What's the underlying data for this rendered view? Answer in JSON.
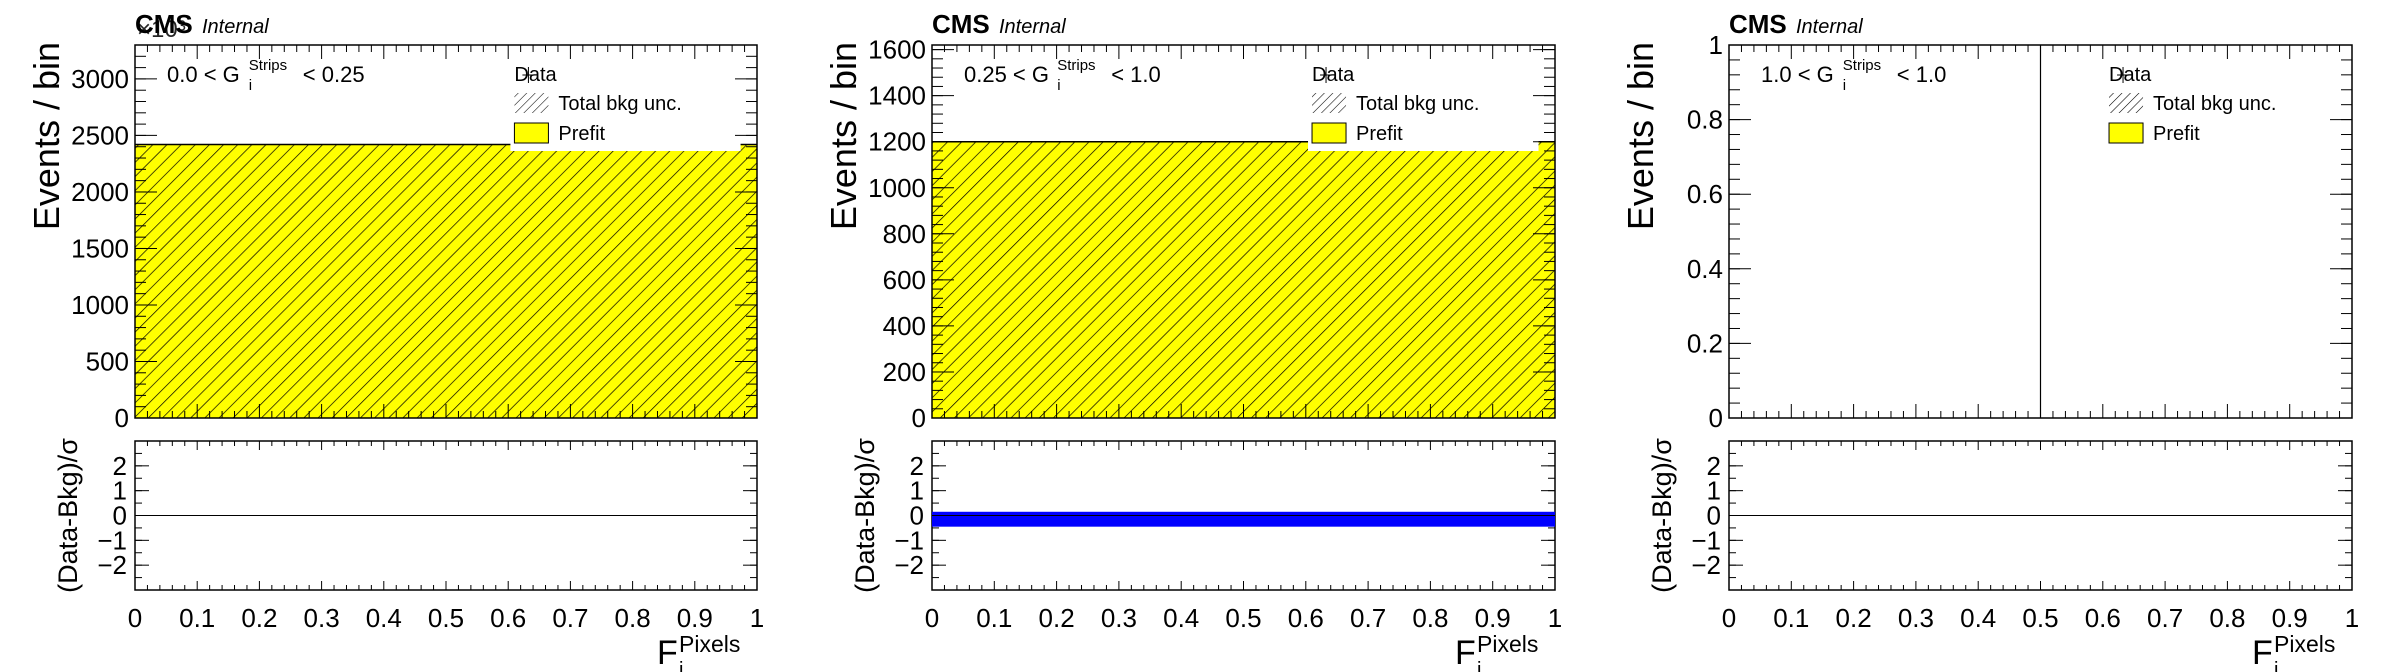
{
  "chart_data": [
    {
      "type": "bar",
      "cms_label": "CMS",
      "cms_sublabel": "Internal",
      "exponent_label": "×10³",
      "region": {
        "prefix": "0.0 < G",
        "sup": "Strips",
        "sub": "i",
        "suffix": "< 0.25"
      },
      "ylabel": "Events / bin",
      "yticks": [
        "0",
        "500",
        "1000",
        "1500",
        "2000",
        "2500",
        "3000"
      ],
      "ylim": [
        0,
        3300
      ],
      "xlim": [
        0,
        1
      ],
      "xticks": [
        "0",
        "0.1",
        "0.2",
        "0.3",
        "0.4",
        "0.5",
        "0.6",
        "0.7",
        "0.8",
        "0.9",
        "1"
      ],
      "xlabel": {
        "base": "F",
        "sup": "Pixels",
        "sub": "i"
      },
      "legend": {
        "position": "top-right",
        "entries": [
          "Data",
          "Total bkg unc.",
          "Prefit"
        ]
      },
      "series": [
        {
          "name": "Prefit",
          "bins": [
            [
              0,
              1
            ]
          ],
          "values": [
            2420
          ],
          "color": "#ffff00"
        }
      ],
      "ratio": {
        "ylabel": "(Data-Bkg)/σ",
        "yticks": [
          "2",
          "1",
          "0",
          "−1",
          "−2"
        ],
        "ylim": [
          -3,
          3
        ],
        "band": null
      }
    },
    {
      "type": "bar",
      "cms_label": "CMS",
      "cms_sublabel": "Internal",
      "region": {
        "prefix": "0.25 < G",
        "sup": "Strips",
        "sub": "i",
        "suffix": "< 1.0"
      },
      "ylabel": "Events / bin",
      "yticks": [
        "0",
        "200",
        "400",
        "600",
        "800",
        "1000",
        "1200",
        "1400",
        "1600"
      ],
      "ylim": [
        0,
        1620
      ],
      "xlim": [
        0,
        1
      ],
      "xticks": [
        "0",
        "0.1",
        "0.2",
        "0.3",
        "0.4",
        "0.5",
        "0.6",
        "0.7",
        "0.8",
        "0.9",
        "1"
      ],
      "xlabel": {
        "base": "F",
        "sup": "Pixels",
        "sub": "i"
      },
      "legend": {
        "position": "top-right",
        "entries": [
          "Data",
          "Total bkg unc.",
          "Prefit"
        ]
      },
      "series": [
        {
          "name": "Prefit",
          "bins": [
            [
              0,
              1
            ]
          ],
          "values": [
            1200
          ],
          "color": "#ffff00"
        }
      ],
      "ratio": {
        "ylabel": "(Data-Bkg)/σ",
        "yticks": [
          "2",
          "1",
          "0",
          "−1",
          "−2"
        ],
        "ylim": [
          -3,
          3
        ],
        "band": [
          -0.45,
          0.15
        ],
        "band_color": "#0000ff"
      }
    },
    {
      "type": "bar",
      "cms_label": "CMS",
      "cms_sublabel": "Internal",
      "region": {
        "prefix": "1.0 < G",
        "sup": "Strips",
        "sub": "i",
        "suffix": "< 1.0"
      },
      "ylabel": "Events / bin",
      "yticks": [
        "0",
        "0.2",
        "0.4",
        "0.6",
        "0.8",
        "1"
      ],
      "ylim": [
        0,
        1
      ],
      "xlim": [
        0,
        1
      ],
      "xticks": [
        "0",
        "0.1",
        "0.2",
        "0.3",
        "0.4",
        "0.5",
        "0.6",
        "0.7",
        "0.8",
        "0.9",
        "1"
      ],
      "xlabel": {
        "base": "F",
        "sup": "Pixels",
        "sub": "i"
      },
      "legend": {
        "position": "top-right",
        "entries": [
          "Data",
          "Total bkg unc.",
          "Prefit"
        ]
      },
      "series": [
        {
          "name": "Prefit",
          "bins": [
            [
              0,
              1
            ]
          ],
          "values": [
            0
          ],
          "color": "#ffff00"
        }
      ],
      "vertical_line_x": 0.5,
      "ratio": {
        "ylabel": "(Data-Bkg)/σ",
        "yticks": [
          "2",
          "1",
          "0",
          "−1",
          "−2"
        ],
        "ylim": [
          -3,
          3
        ],
        "band": null
      }
    }
  ]
}
